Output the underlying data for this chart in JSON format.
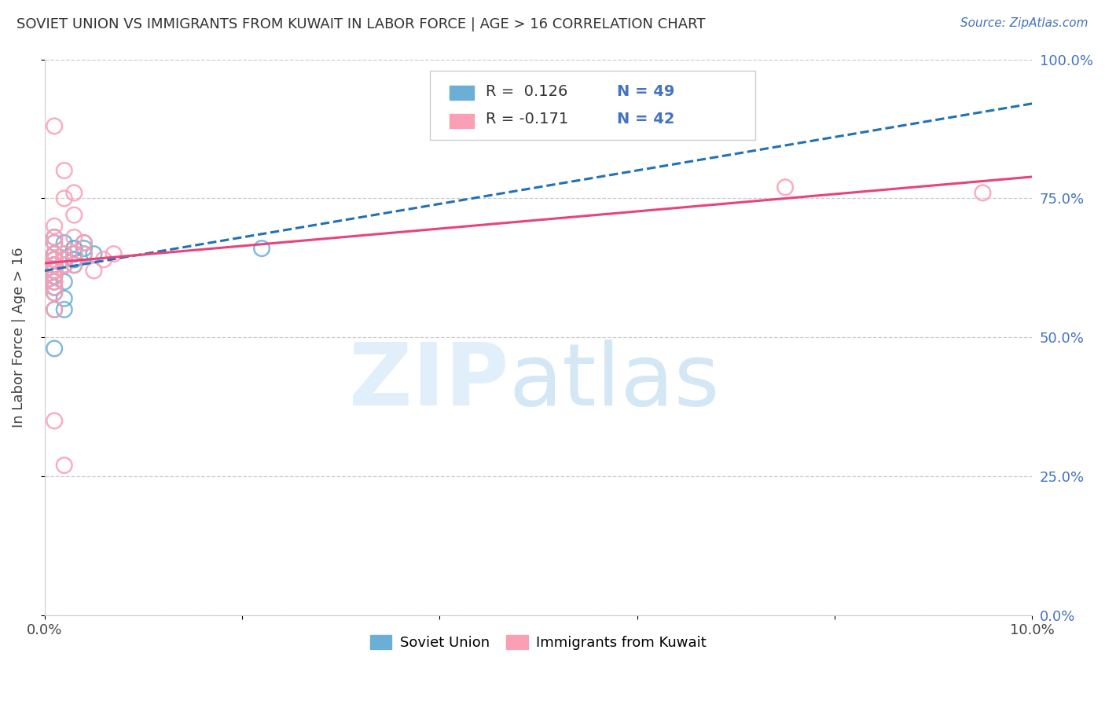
{
  "title": "SOVIET UNION VS IMMIGRANTS FROM KUWAIT IN LABOR FORCE | AGE > 16 CORRELATION CHART",
  "source": "Source: ZipAtlas.com",
  "ylabel": "In Labor Force | Age > 16",
  "xlim": [
    0.0,
    0.1
  ],
  "ylim": [
    0.0,
    1.0
  ],
  "xticklabels": [
    "0.0%",
    "",
    "",
    "",
    "",
    "10.0%"
  ],
  "yticklabels_right": [
    "0.0%",
    "25.0%",
    "50.0%",
    "75.0%",
    "100.0%"
  ],
  "legend_r1": "R =  0.126",
  "legend_n1": "N = 49",
  "legend_r2": "R = -0.171",
  "legend_n2": "N = 42",
  "blue_color": "#6baed6",
  "pink_color": "#fa9fb5",
  "blue_line_color": "#2171b5",
  "pink_line_color": "#e8437a",
  "grid_color": "#cccccc",
  "soviet_x": [
    0.001,
    0.001,
    0.001,
    0.002,
    0.001,
    0.001,
    0.002,
    0.003,
    0.002,
    0.001,
    0.002,
    0.001,
    0.003,
    0.004,
    0.001,
    0.001,
    0.001,
    0.002,
    0.003,
    0.002,
    0.001,
    0.001,
    0.003,
    0.001,
    0.004,
    0.001,
    0.001,
    0.001,
    0.002,
    0.003,
    0.001,
    0.001,
    0.001,
    0.001,
    0.005,
    0.004,
    0.003,
    0.002,
    0.002,
    0.001,
    0.001,
    0.001,
    0.003,
    0.001,
    0.002,
    0.022,
    0.001,
    0.001,
    0.001
  ],
  "soviet_y": [
    0.67,
    0.68,
    0.65,
    0.64,
    0.62,
    0.63,
    0.65,
    0.64,
    0.67,
    0.63,
    0.65,
    0.63,
    0.66,
    0.65,
    0.64,
    0.63,
    0.61,
    0.6,
    0.64,
    0.63,
    0.62,
    0.63,
    0.66,
    0.61,
    0.67,
    0.63,
    0.62,
    0.6,
    0.63,
    0.65,
    0.62,
    0.59,
    0.58,
    0.55,
    0.65,
    0.66,
    0.63,
    0.55,
    0.57,
    0.61,
    0.6,
    0.59,
    0.65,
    0.48,
    0.64,
    0.66,
    0.63,
    0.64,
    0.65
  ],
  "kuwait_x": [
    0.001,
    0.001,
    0.001,
    0.002,
    0.001,
    0.002,
    0.001,
    0.002,
    0.003,
    0.001,
    0.002,
    0.001,
    0.003,
    0.001,
    0.001,
    0.002,
    0.003,
    0.004,
    0.001,
    0.001,
    0.001,
    0.003,
    0.004,
    0.001,
    0.002,
    0.001,
    0.001,
    0.001,
    0.002,
    0.001,
    0.003,
    0.001,
    0.002,
    0.001,
    0.005,
    0.001,
    0.002,
    0.006,
    0.007,
    0.002,
    0.075,
    0.095
  ],
  "kuwait_y": [
    0.65,
    0.67,
    0.64,
    0.63,
    0.68,
    0.8,
    0.7,
    0.75,
    0.76,
    0.64,
    0.65,
    0.63,
    0.72,
    0.62,
    0.6,
    0.65,
    0.63,
    0.67,
    0.62,
    0.61,
    0.6,
    0.68,
    0.65,
    0.59,
    0.64,
    0.63,
    0.62,
    0.58,
    0.63,
    0.64,
    0.65,
    0.88,
    0.64,
    0.55,
    0.62,
    0.35,
    0.63,
    0.64,
    0.65,
    0.27,
    0.77,
    0.76
  ]
}
